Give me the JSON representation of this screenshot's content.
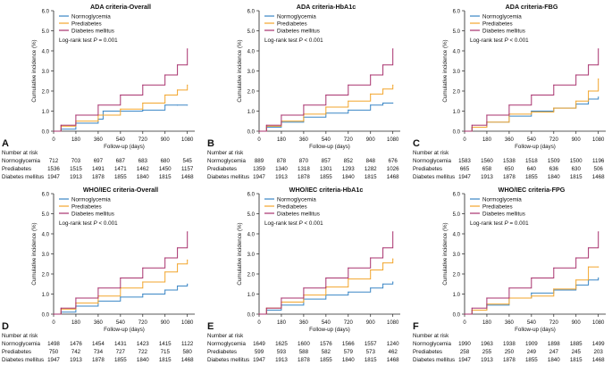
{
  "figure": {
    "legend_labels": [
      "Normoglycemia",
      "Prediabetes",
      "Diabetes mellitus"
    ],
    "colors": {
      "Normoglycemia": "#3a86c5",
      "Prediabetes": "#f2a52c",
      "Diabetes mellitus": "#a8326e",
      "axis": "#222222"
    },
    "ylabel": "Cumulative incidence (%)",
    "xlabel": "Follow-up (days)",
    "risk_header": "Number at risk",
    "x_ticks": [
      0,
      180,
      360,
      540,
      720,
      900,
      1080
    ],
    "y_ticks": [
      "0.0",
      "1.0",
      "2.0",
      "3.0",
      "4.0",
      "5.0",
      "6.0"
    ]
  },
  "chart_data": [
    {
      "type": "line",
      "panel_letter": "A",
      "title": "ADA criteria-Overall",
      "logrank_prefix": "Log-rank test ",
      "logrank_p": "P",
      "logrank_suffix": " = 0.001",
      "xlim": [
        0,
        1140
      ],
      "ylim": [
        0,
        6
      ],
      "series": [
        {
          "name": "Normoglycemia",
          "x": [
            0,
            60,
            180,
            360,
            400,
            720,
            900,
            1000,
            1080
          ],
          "y": [
            0,
            0.1,
            0.4,
            0.6,
            1.0,
            1.05,
            1.3,
            1.3,
            1.3
          ]
        },
        {
          "name": "Prediabetes",
          "x": [
            0,
            60,
            180,
            360,
            540,
            720,
            900,
            1000,
            1080
          ],
          "y": [
            0,
            0.25,
            0.5,
            0.8,
            1.1,
            1.4,
            1.8,
            2.05,
            2.3
          ]
        },
        {
          "name": "Diabetes mellitus",
          "x": [
            0,
            60,
            180,
            360,
            540,
            720,
            900,
            1000,
            1080
          ],
          "y": [
            0,
            0.3,
            0.8,
            1.3,
            1.8,
            2.3,
            2.8,
            3.3,
            4.1
          ]
        }
      ],
      "risk_table": [
        {
          "label": "Normoglycemia",
          "values": [
            "712",
            "703",
            "697",
            "687",
            "683",
            "680",
            "545"
          ]
        },
        {
          "label": "Prediabetes",
          "values": [
            "1536",
            "1515",
            "1491",
            "1471",
            "1462",
            "1450",
            "1157"
          ]
        },
        {
          "label": "Diabetes mellitus",
          "values": [
            "1947",
            "1913",
            "1878",
            "1855",
            "1840",
            "1815",
            "1468"
          ]
        }
      ]
    },
    {
      "type": "line",
      "panel_letter": "B",
      "title": "ADA criteria-HbA1c",
      "logrank_prefix": "Log-rank test ",
      "logrank_p": "P",
      "logrank_suffix": " < 0.001",
      "xlim": [
        0,
        1140
      ],
      "ylim": [
        0,
        6
      ],
      "series": [
        {
          "name": "Normoglycemia",
          "x": [
            0,
            60,
            180,
            360,
            540,
            720,
            900,
            1000,
            1080
          ],
          "y": [
            0,
            0.2,
            0.45,
            0.7,
            0.9,
            1.05,
            1.3,
            1.4,
            1.4
          ]
        },
        {
          "name": "Prediabetes",
          "x": [
            0,
            60,
            180,
            360,
            540,
            720,
            900,
            1000,
            1080
          ],
          "y": [
            0,
            0.25,
            0.5,
            0.85,
            1.2,
            1.5,
            1.85,
            2.1,
            2.3
          ]
        },
        {
          "name": "Diabetes mellitus",
          "x": [
            0,
            60,
            180,
            360,
            540,
            720,
            900,
            1000,
            1080
          ],
          "y": [
            0,
            0.3,
            0.8,
            1.3,
            1.8,
            2.3,
            2.8,
            3.3,
            4.1
          ]
        }
      ],
      "risk_table": [
        {
          "label": "Normoglycemia",
          "values": [
            "889",
            "878",
            "870",
            "857",
            "852",
            "848",
            "676"
          ]
        },
        {
          "label": "Prediabetes",
          "values": [
            "1359",
            "1340",
            "1318",
            "1301",
            "1293",
            "1282",
            "1026"
          ]
        },
        {
          "label": "Diabetes mellitus",
          "values": [
            "1947",
            "1913",
            "1878",
            "1855",
            "1840",
            "1815",
            "1468"
          ]
        }
      ]
    },
    {
      "type": "line",
      "panel_letter": "C",
      "title": "ADA criteria-FBG",
      "logrank_prefix": "Log-rank test ",
      "logrank_p": "P",
      "logrank_suffix": " < 0.001",
      "xlim": [
        0,
        1140
      ],
      "ylim": [
        0,
        6
      ],
      "series": [
        {
          "name": "Normoglycemia",
          "x": [
            0,
            60,
            180,
            360,
            540,
            720,
            900,
            1000,
            1080
          ],
          "y": [
            0,
            0.2,
            0.45,
            0.75,
            1.0,
            1.15,
            1.35,
            1.6,
            1.7
          ]
        },
        {
          "name": "Prediabetes",
          "x": [
            0,
            60,
            180,
            360,
            540,
            720,
            900,
            1000,
            1080
          ],
          "y": [
            0,
            0.2,
            0.45,
            0.85,
            0.95,
            1.15,
            1.5,
            2.0,
            2.6
          ]
        },
        {
          "name": "Diabetes mellitus",
          "x": [
            0,
            60,
            180,
            360,
            540,
            720,
            900,
            1000,
            1080
          ],
          "y": [
            0,
            0.3,
            0.8,
            1.3,
            1.8,
            2.3,
            2.8,
            3.3,
            4.1
          ]
        }
      ],
      "risk_table": [
        {
          "label": "Normoglycemia",
          "values": [
            "1583",
            "1560",
            "1538",
            "1518",
            "1509",
            "1500",
            "1196"
          ]
        },
        {
          "label": "Prediabetes",
          "values": [
            "665",
            "658",
            "650",
            "640",
            "636",
            "630",
            "506"
          ]
        },
        {
          "label": "Diabetes mellitus",
          "values": [
            "1947",
            "1913",
            "1878",
            "1855",
            "1840",
            "1815",
            "1468"
          ]
        }
      ]
    },
    {
      "type": "line",
      "panel_letter": "D",
      "title": "WHO/IEC criteria-Overall",
      "logrank_prefix": "Log-rank test ",
      "logrank_p": "P",
      "logrank_suffix": " < 0.001",
      "xlim": [
        0,
        1140
      ],
      "ylim": [
        0,
        6
      ],
      "series": [
        {
          "name": "Normoglycemia",
          "x": [
            0,
            60,
            180,
            360,
            540,
            720,
            900,
            1000,
            1080
          ],
          "y": [
            0,
            0.1,
            0.4,
            0.65,
            0.85,
            1.0,
            1.2,
            1.4,
            1.5
          ]
        },
        {
          "name": "Prediabetes",
          "x": [
            0,
            60,
            180,
            360,
            540,
            720,
            900,
            1000,
            1080
          ],
          "y": [
            0,
            0.25,
            0.55,
            0.9,
            1.3,
            1.6,
            2.1,
            2.5,
            2.7
          ]
        },
        {
          "name": "Diabetes mellitus",
          "x": [
            0,
            60,
            180,
            360,
            540,
            720,
            900,
            1000,
            1080
          ],
          "y": [
            0,
            0.3,
            0.8,
            1.3,
            1.8,
            2.3,
            2.8,
            3.3,
            4.1
          ]
        }
      ],
      "risk_table": [
        {
          "label": "Normoglycemia",
          "values": [
            "1498",
            "1476",
            "1454",
            "1431",
            "1423",
            "1415",
            "1122"
          ]
        },
        {
          "label": "Prediabetes",
          "values": [
            "750",
            "742",
            "734",
            "727",
            "722",
            "715",
            "580"
          ]
        },
        {
          "label": "Diabetes mellitus",
          "values": [
            "1947",
            "1913",
            "1878",
            "1855",
            "1840",
            "1815",
            "1468"
          ]
        }
      ]
    },
    {
      "type": "line",
      "panel_letter": "E",
      "title": "WHO/IEC criteria-HbA1c",
      "logrank_prefix": "Log-rank test ",
      "logrank_p": "P",
      "logrank_suffix": " < 0.001",
      "xlim": [
        0,
        1140
      ],
      "ylim": [
        0,
        6
      ],
      "series": [
        {
          "name": "Normoglycemia",
          "x": [
            0,
            60,
            180,
            360,
            540,
            720,
            900,
            1000,
            1080
          ],
          "y": [
            0,
            0.2,
            0.45,
            0.75,
            0.95,
            1.1,
            1.3,
            1.5,
            1.6
          ]
        },
        {
          "name": "Prediabetes",
          "x": [
            0,
            60,
            180,
            360,
            540,
            720,
            900,
            1000,
            1080
          ],
          "y": [
            0,
            0.3,
            0.6,
            0.95,
            1.35,
            1.75,
            2.2,
            2.55,
            2.75
          ]
        },
        {
          "name": "Diabetes mellitus",
          "x": [
            0,
            60,
            180,
            360,
            540,
            720,
            900,
            1000,
            1080
          ],
          "y": [
            0,
            0.3,
            0.8,
            1.3,
            1.8,
            2.3,
            2.8,
            3.3,
            4.1
          ]
        }
      ],
      "risk_table": [
        {
          "label": "Normoglycemia",
          "values": [
            "1649",
            "1625",
            "1600",
            "1576",
            "1566",
            "1557",
            "1240"
          ]
        },
        {
          "label": "Prediabetes",
          "values": [
            "599",
            "593",
            "588",
            "582",
            "579",
            "573",
            "462"
          ]
        },
        {
          "label": "Diabetes mellitus",
          "values": [
            "1947",
            "1913",
            "1878",
            "1855",
            "1840",
            "1815",
            "1468"
          ]
        }
      ]
    },
    {
      "type": "line",
      "panel_letter": "F",
      "title": "WHO/IEC criteria-FPG",
      "logrank_prefix": "Log-rank test ",
      "logrank_p": "P",
      "logrank_suffix": " = 0.001",
      "xlim": [
        0,
        1140
      ],
      "ylim": [
        0,
        6
      ],
      "series": [
        {
          "name": "Normoglycemia",
          "x": [
            0,
            60,
            180,
            360,
            540,
            720,
            900,
            1000,
            1080
          ],
          "y": [
            0,
            0.2,
            0.45,
            0.8,
            1.05,
            1.2,
            1.45,
            1.7,
            1.8
          ]
        },
        {
          "name": "Prediabetes",
          "x": [
            0,
            60,
            180,
            360,
            540,
            720,
            900,
            1000,
            1080
          ],
          "y": [
            0,
            0.2,
            0.5,
            0.8,
            0.9,
            1.25,
            1.7,
            2.35,
            2.35
          ]
        },
        {
          "name": "Diabetes mellitus",
          "x": [
            0,
            60,
            180,
            360,
            540,
            720,
            900,
            1000,
            1080
          ],
          "y": [
            0,
            0.3,
            0.8,
            1.3,
            1.8,
            2.3,
            2.8,
            3.3,
            4.1
          ]
        }
      ],
      "risk_table": [
        {
          "label": "Normoglycemia",
          "values": [
            "1990",
            "1963",
            "1938",
            "1909",
            "1898",
            "1885",
            "1499"
          ]
        },
        {
          "label": "Prediabetes",
          "values": [
            "258",
            "255",
            "250",
            "249",
            "247",
            "245",
            "203"
          ]
        },
        {
          "label": "Diabetes mellitus",
          "values": [
            "1947",
            "1913",
            "1878",
            "1855",
            "1840",
            "1815",
            "1468"
          ]
        }
      ]
    }
  ]
}
